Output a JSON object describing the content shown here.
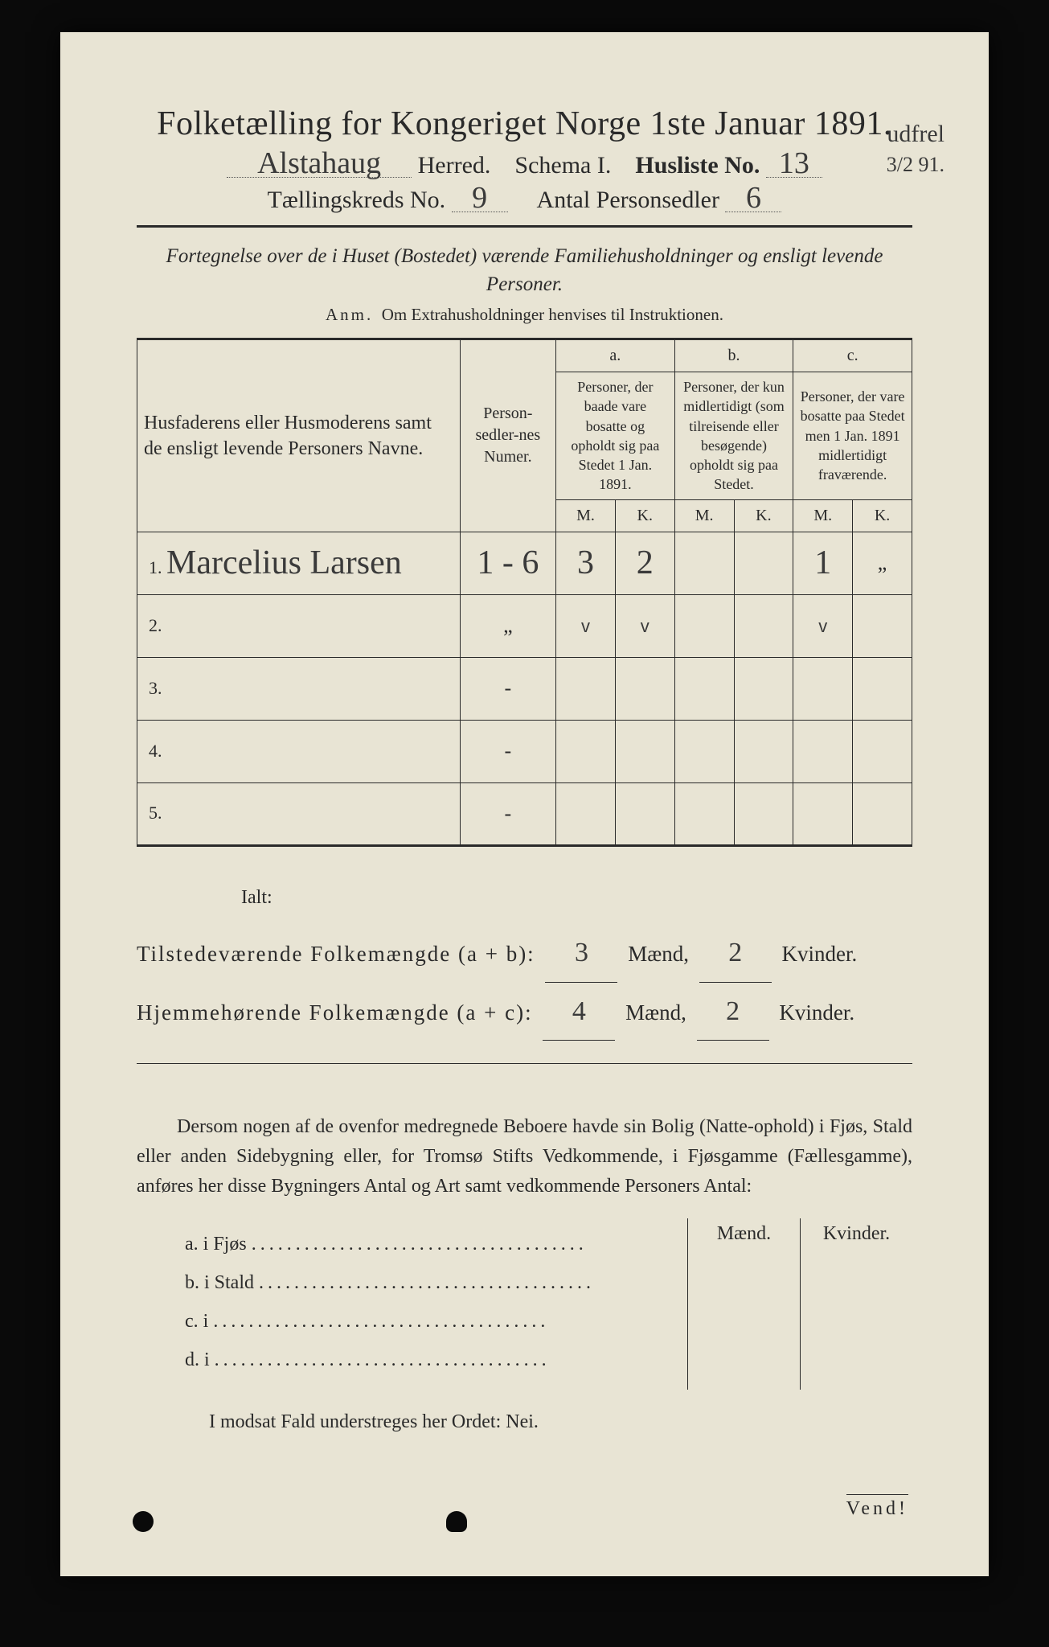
{
  "title": "Folketælling for Kongeriget Norge 1ste Januar 1891.",
  "header": {
    "herred_value": "Alstahaug",
    "herred_label": "Herred.",
    "schema_label": "Schema I.",
    "husliste_label": "Husliste No.",
    "husliste_value": "13",
    "kreds_label": "Tællingskreds No.",
    "kreds_value": "9",
    "personsedler_label": "Antal Personsedler",
    "personsedler_value": "6",
    "margin_note_top": "udfrel",
    "margin_note_date": "3/2 91."
  },
  "subtitle": "Fortegnelse over de i Huset (Bostedet) værende Familiehusholdninger og ensligt levende Personer.",
  "anm_prefix": "Anm.",
  "anm_text": "Om Extrahusholdninger henvises til Instruktionen.",
  "columns": {
    "name": "Husfaderens eller Husmoderens samt de ensligt levende Personers Navne.",
    "numer": "Person-sedler-nes Numer.",
    "a_label": "a.",
    "a_text": "Personer, der baade vare bosatte og opholdt sig paa Stedet 1 Jan. 1891.",
    "b_label": "b.",
    "b_text": "Personer, der kun midlertidigt (som tilreisende eller besøgende) opholdt sig paa Stedet.",
    "c_label": "c.",
    "c_text": "Personer, der vare bosatte paa Stedet men 1 Jan. 1891 midlertidigt fraværende.",
    "m": "M.",
    "k": "K."
  },
  "rows": [
    {
      "n": "1.",
      "name": "Marcelius Larsen",
      "numer": "1 - 6",
      "am": "3",
      "ak": "2",
      "bm": "",
      "bk": "",
      "cm": "1",
      "ck": "„"
    },
    {
      "n": "2.",
      "name": "",
      "numer": "„",
      "am": "v",
      "ak": "v",
      "bm": "",
      "bk": "",
      "cm": "v",
      "ck": ""
    },
    {
      "n": "3.",
      "name": "",
      "numer": "-",
      "am": "",
      "ak": "",
      "bm": "",
      "bk": "",
      "cm": "",
      "ck": ""
    },
    {
      "n": "4.",
      "name": "",
      "numer": "-",
      "am": "",
      "ak": "",
      "bm": "",
      "bk": "",
      "cm": "",
      "ck": ""
    },
    {
      "n": "5.",
      "name": "",
      "numer": "-",
      "am": "",
      "ak": "",
      "bm": "",
      "bk": "",
      "cm": "",
      "ck": ""
    }
  ],
  "totals": {
    "ialt": "Ialt:",
    "tilstede_label": "Tilstedeværende Folkemængde (a + b):",
    "tilstede_m": "3",
    "tilstede_k": "2",
    "hjemme_label": "Hjemmehørende Folkemængde (a + c):",
    "hjemme_m": "4",
    "hjemme_k": "2",
    "maend": "Mænd,",
    "kvinder": "Kvinder."
  },
  "paragraph": "Dersom nogen af de ovenfor medregnede Beboere havde sin Bolig (Natte-ophold) i Fjøs, Stald eller anden Sidebygning eller, for Tromsø Stifts Vedkommende, i Fjøsgamme (Fællesgamme), anføres her disse Bygningers Antal og Art samt vedkommende Personers Antal:",
  "bygninger": {
    "maend": "Mænd.",
    "kvinder": "Kvinder.",
    "rows": [
      {
        "label": "a.  i      Fjøs"
      },
      {
        "label": "b.  i      Stald"
      },
      {
        "label": "c.  i"
      },
      {
        "label": "d.  i"
      }
    ]
  },
  "nei_line": "I modsat Fald understreges her Ordet: Nei.",
  "vend": "Vend!",
  "colors": {
    "paper": "#e8e4d4",
    "ink": "#2a2a2a",
    "handwriting": "#3a3a3a",
    "background": "#0a0a0a"
  }
}
